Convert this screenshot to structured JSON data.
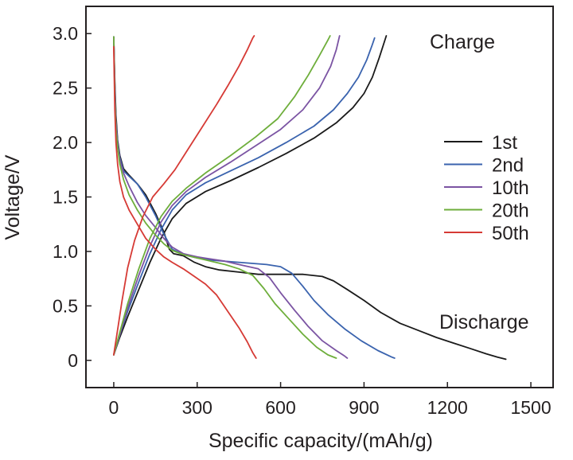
{
  "chart_data": {
    "type": "line",
    "title": "",
    "xlabel": "Specific capacity/(mAh/g)",
    "ylabel": "Voltage/V",
    "xlim": [
      -100,
      1580
    ],
    "ylim": [
      -0.25,
      3.25
    ],
    "xticks": [
      0,
      300,
      600,
      900,
      1200,
      1500
    ],
    "xtick_labels": [
      "0",
      "300",
      "600",
      "900",
      "1200",
      "1500"
    ],
    "yticks": [
      0,
      0.5,
      1.0,
      1.5,
      2.0,
      2.5,
      3.0
    ],
    "ytick_labels": [
      "0",
      "0.5",
      "1.0",
      "1.5",
      "2.0",
      "2.5",
      "3.0"
    ],
    "grid": false,
    "legend_position": "right",
    "annotations": [
      {
        "text": "Charge",
        "x": 1300,
        "y": 2.95
      },
      {
        "text": "Discharge",
        "x": 1300,
        "y": 0.32
      }
    ],
    "series": [
      {
        "name": "1st",
        "color": "#1a1a1a",
        "discharge": [
          [
            0,
            2.97
          ],
          [
            4,
            2.55
          ],
          [
            8,
            2.25
          ],
          [
            14,
            2.02
          ],
          [
            22,
            1.88
          ],
          [
            35,
            1.76
          ],
          [
            55,
            1.7
          ],
          [
            85,
            1.62
          ],
          [
            115,
            1.52
          ],
          [
            150,
            1.35
          ],
          [
            180,
            1.18
          ],
          [
            200,
            1.02
          ],
          [
            215,
            0.98
          ],
          [
            250,
            0.96
          ],
          [
            290,
            0.9
          ],
          [
            330,
            0.86
          ],
          [
            380,
            0.83
          ],
          [
            450,
            0.81
          ],
          [
            520,
            0.79
          ],
          [
            600,
            0.79
          ],
          [
            680,
            0.79
          ],
          [
            750,
            0.77
          ],
          [
            790,
            0.73
          ],
          [
            840,
            0.65
          ],
          [
            900,
            0.55
          ],
          [
            960,
            0.44
          ],
          [
            1030,
            0.34
          ],
          [
            1100,
            0.27
          ],
          [
            1160,
            0.21
          ],
          [
            1220,
            0.16
          ],
          [
            1280,
            0.11
          ],
          [
            1340,
            0.06
          ],
          [
            1380,
            0.03
          ],
          [
            1410,
            0.01
          ]
        ],
        "charge": [
          [
            0,
            0.05
          ],
          [
            20,
            0.2
          ],
          [
            50,
            0.4
          ],
          [
            90,
            0.65
          ],
          [
            130,
            0.9
          ],
          [
            170,
            1.12
          ],
          [
            210,
            1.3
          ],
          [
            260,
            1.44
          ],
          [
            330,
            1.55
          ],
          [
            420,
            1.65
          ],
          [
            520,
            1.77
          ],
          [
            620,
            1.9
          ],
          [
            720,
            2.04
          ],
          [
            800,
            2.18
          ],
          [
            860,
            2.32
          ],
          [
            900,
            2.45
          ],
          [
            930,
            2.6
          ],
          [
            955,
            2.78
          ],
          [
            970,
            2.9
          ],
          [
            980,
            2.98
          ]
        ]
      },
      {
        "name": "2nd",
        "color": "#3a63ae",
        "discharge": [
          [
            0,
            2.97
          ],
          [
            4,
            2.5
          ],
          [
            8,
            2.2
          ],
          [
            14,
            2.0
          ],
          [
            22,
            1.86
          ],
          [
            35,
            1.74
          ],
          [
            55,
            1.69
          ],
          [
            85,
            1.62
          ],
          [
            115,
            1.5
          ],
          [
            150,
            1.33
          ],
          [
            180,
            1.16
          ],
          [
            210,
            1.02
          ],
          [
            250,
            0.97
          ],
          [
            300,
            0.94
          ],
          [
            350,
            0.92
          ],
          [
            450,
            0.9
          ],
          [
            550,
            0.88
          ],
          [
            600,
            0.86
          ],
          [
            640,
            0.8
          ],
          [
            680,
            0.68
          ],
          [
            720,
            0.55
          ],
          [
            770,
            0.42
          ],
          [
            830,
            0.29
          ],
          [
            890,
            0.18
          ],
          [
            950,
            0.09
          ],
          [
            1000,
            0.03
          ],
          [
            1010,
            0.02
          ]
        ],
        "charge": [
          [
            0,
            0.05
          ],
          [
            20,
            0.22
          ],
          [
            50,
            0.45
          ],
          [
            90,
            0.72
          ],
          [
            130,
            0.98
          ],
          [
            170,
            1.2
          ],
          [
            210,
            1.38
          ],
          [
            260,
            1.52
          ],
          [
            330,
            1.63
          ],
          [
            420,
            1.74
          ],
          [
            520,
            1.86
          ],
          [
            620,
            2.0
          ],
          [
            720,
            2.15
          ],
          [
            790,
            2.3
          ],
          [
            840,
            2.45
          ],
          [
            880,
            2.6
          ],
          [
            910,
            2.76
          ],
          [
            930,
            2.9
          ],
          [
            938,
            2.96
          ]
        ]
      },
      {
        "name": "10th",
        "color": "#7b54a3",
        "discharge": [
          [
            0,
            2.97
          ],
          [
            4,
            2.45
          ],
          [
            8,
            2.18
          ],
          [
            14,
            1.98
          ],
          [
            22,
            1.84
          ],
          [
            35,
            1.72
          ],
          [
            55,
            1.6
          ],
          [
            85,
            1.45
          ],
          [
            115,
            1.33
          ],
          [
            150,
            1.22
          ],
          [
            180,
            1.12
          ],
          [
            210,
            1.04
          ],
          [
            250,
            0.98
          ],
          [
            300,
            0.95
          ],
          [
            350,
            0.93
          ],
          [
            400,
            0.91
          ],
          [
            450,
            0.88
          ],
          [
            520,
            0.84
          ],
          [
            560,
            0.76
          ],
          [
            600,
            0.62
          ],
          [
            650,
            0.46
          ],
          [
            700,
            0.31
          ],
          [
            750,
            0.18
          ],
          [
            800,
            0.09
          ],
          [
            830,
            0.04
          ],
          [
            840,
            0.02
          ]
        ],
        "charge": [
          [
            0,
            0.05
          ],
          [
            20,
            0.22
          ],
          [
            50,
            0.48
          ],
          [
            90,
            0.78
          ],
          [
            130,
            1.05
          ],
          [
            170,
            1.27
          ],
          [
            210,
            1.42
          ],
          [
            260,
            1.55
          ],
          [
            330,
            1.68
          ],
          [
            420,
            1.82
          ],
          [
            510,
            1.97
          ],
          [
            600,
            2.12
          ],
          [
            680,
            2.3
          ],
          [
            740,
            2.5
          ],
          [
            780,
            2.7
          ],
          [
            800,
            2.85
          ],
          [
            812,
            2.98
          ]
        ]
      },
      {
        "name": "20th",
        "color": "#6eae3b",
        "discharge": [
          [
            0,
            2.97
          ],
          [
            4,
            2.4
          ],
          [
            8,
            2.12
          ],
          [
            14,
            1.95
          ],
          [
            22,
            1.8
          ],
          [
            35,
            1.66
          ],
          [
            55,
            1.52
          ],
          [
            85,
            1.38
          ],
          [
            115,
            1.26
          ],
          [
            150,
            1.15
          ],
          [
            180,
            1.07
          ],
          [
            210,
            1.01
          ],
          [
            250,
            0.97
          ],
          [
            300,
            0.94
          ],
          [
            350,
            0.91
          ],
          [
            400,
            0.88
          ],
          [
            450,
            0.84
          ],
          [
            500,
            0.78
          ],
          [
            540,
            0.66
          ],
          [
            580,
            0.52
          ],
          [
            630,
            0.38
          ],
          [
            680,
            0.24
          ],
          [
            730,
            0.12
          ],
          [
            770,
            0.05
          ],
          [
            800,
            0.02
          ]
        ],
        "charge": [
          [
            0,
            0.05
          ],
          [
            20,
            0.24
          ],
          [
            50,
            0.52
          ],
          [
            90,
            0.84
          ],
          [
            130,
            1.12
          ],
          [
            170,
            1.32
          ],
          [
            210,
            1.46
          ],
          [
            260,
            1.58
          ],
          [
            330,
            1.72
          ],
          [
            420,
            1.88
          ],
          [
            510,
            2.05
          ],
          [
            590,
            2.22
          ],
          [
            650,
            2.42
          ],
          [
            700,
            2.62
          ],
          [
            740,
            2.8
          ],
          [
            770,
            2.94
          ],
          [
            778,
            2.98
          ]
        ]
      },
      {
        "name": "50th",
        "color": "#d63a35",
        "discharge": [
          [
            0,
            2.88
          ],
          [
            4,
            2.3
          ],
          [
            8,
            2.0
          ],
          [
            14,
            1.8
          ],
          [
            22,
            1.64
          ],
          [
            35,
            1.5
          ],
          [
            55,
            1.38
          ],
          [
            85,
            1.25
          ],
          [
            115,
            1.12
          ],
          [
            150,
            1.02
          ],
          [
            180,
            0.95
          ],
          [
            210,
            0.9
          ],
          [
            250,
            0.84
          ],
          [
            290,
            0.77
          ],
          [
            330,
            0.7
          ],
          [
            370,
            0.6
          ],
          [
            410,
            0.45
          ],
          [
            450,
            0.3
          ],
          [
            480,
            0.17
          ],
          [
            500,
            0.07
          ],
          [
            512,
            0.02
          ]
        ],
        "charge": [
          [
            0,
            0.05
          ],
          [
            15,
            0.3
          ],
          [
            30,
            0.55
          ],
          [
            50,
            0.85
          ],
          [
            75,
            1.1
          ],
          [
            105,
            1.32
          ],
          [
            140,
            1.5
          ],
          [
            180,
            1.62
          ],
          [
            220,
            1.75
          ],
          [
            270,
            1.95
          ],
          [
            320,
            2.15
          ],
          [
            370,
            2.35
          ],
          [
            410,
            2.52
          ],
          [
            450,
            2.7
          ],
          [
            480,
            2.85
          ],
          [
            500,
            2.96
          ],
          [
            505,
            2.98
          ]
        ]
      }
    ]
  }
}
